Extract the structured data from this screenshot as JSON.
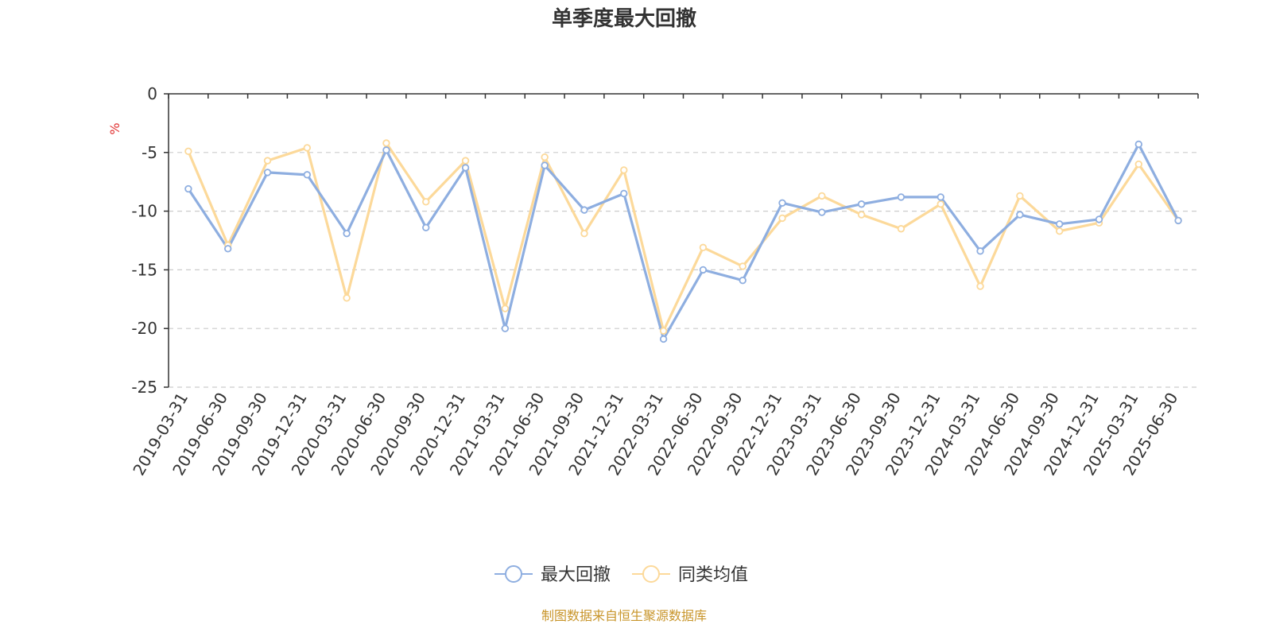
{
  "chart_data": {
    "type": "line",
    "title": "单季度最大回撤",
    "ylabel": "%",
    "ylim": [
      -25,
      0
    ],
    "yticks": [
      0,
      -5,
      -10,
      -15,
      -20,
      -25
    ],
    "grid": true,
    "legend_position": "bottom",
    "categories": [
      "2019-03-31",
      "2019-06-30",
      "2019-09-30",
      "2019-12-31",
      "2020-03-31",
      "2020-06-30",
      "2020-09-30",
      "2020-12-31",
      "2021-03-31",
      "2021-06-30",
      "2021-09-30",
      "2021-12-31",
      "2022-03-31",
      "2022-06-30",
      "2022-09-30",
      "2022-12-31",
      "2023-03-31",
      "2023-06-30",
      "2023-09-30",
      "2023-12-31",
      "2024-03-31",
      "2024-06-30",
      "2024-09-30",
      "2024-12-31",
      "2025-03-31",
      "2025-06-30"
    ],
    "series": [
      {
        "name": "最大回撤",
        "color": "#8eaee0",
        "values": [
          -8.1,
          -13.2,
          -6.7,
          -6.9,
          -11.9,
          -4.8,
          -11.4,
          -6.3,
          -20.0,
          -6.1,
          -9.9,
          -8.5,
          -20.9,
          -15.0,
          -15.9,
          -9.3,
          -10.1,
          -9.4,
          -8.8,
          -8.8,
          -13.4,
          -10.3,
          -11.1,
          -10.7,
          -4.3,
          -10.8
        ]
      },
      {
        "name": "同类均值",
        "color": "#fcd99a",
        "values": [
          -4.9,
          -12.9,
          -5.7,
          -4.6,
          -17.4,
          -4.2,
          -9.2,
          -5.7,
          -18.3,
          -5.4,
          -11.9,
          -6.5,
          -20.2,
          -13.1,
          -14.7,
          -10.6,
          -8.7,
          -10.3,
          -11.5,
          -9.4,
          -16.4,
          -8.7,
          -11.7,
          -11.0,
          -6.0,
          -10.8
        ]
      }
    ]
  },
  "source_text": "制图数据来自恒生聚源数据库"
}
